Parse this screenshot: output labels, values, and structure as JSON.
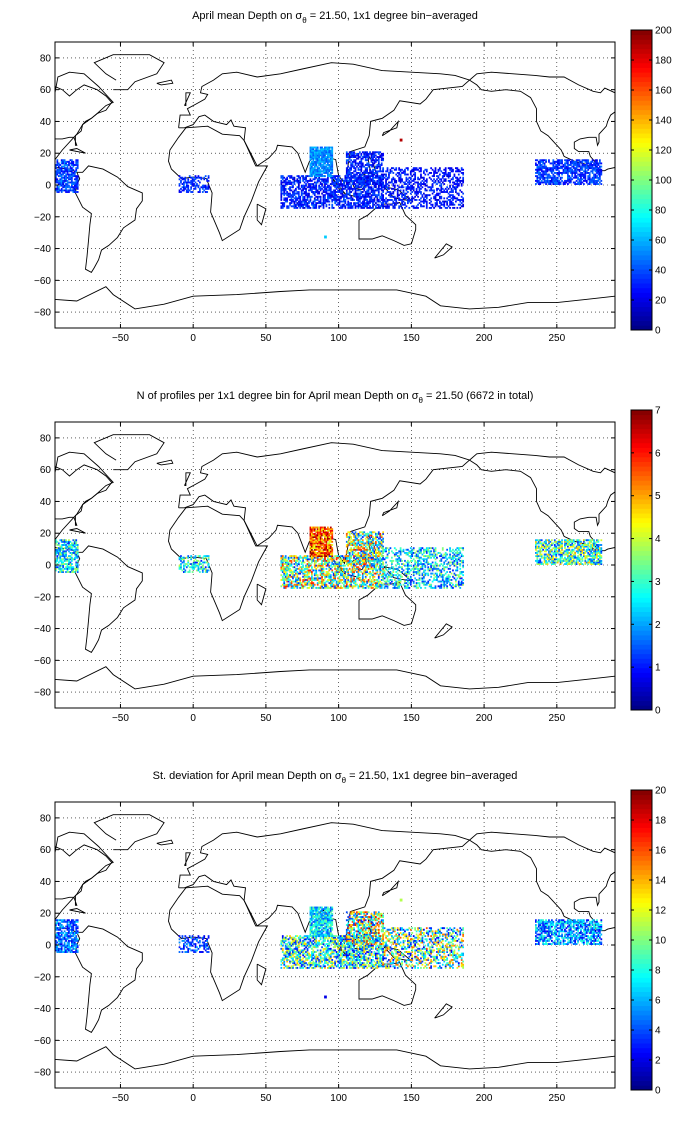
{
  "chart_data": [
    {
      "type": "heatmap",
      "title": "April mean Depth on σθ = 21.50, 1x1 degree bin−averaged",
      "title_parts": [
        "April mean Depth on σ",
        "θ",
        " = 21.50, 1x1 degree bin−averaged"
      ],
      "xlim": [
        -95,
        290
      ],
      "ylim": [
        -90,
        90
      ],
      "xticks": [
        -50,
        0,
        50,
        100,
        150,
        200,
        250
      ],
      "xtick_labels": [
        "−50",
        "0",
        "50",
        "100",
        "150",
        "200",
        "250"
      ],
      "yticks": [
        80,
        60,
        40,
        20,
        0,
        -20,
        -40,
        -60,
        -80
      ],
      "ytick_labels": [
        "80",
        "60",
        "40",
        "20",
        "0",
        "−20",
        "−40",
        "−60",
        "−80"
      ],
      "grid": true,
      "colormap": "jet",
      "clim": [
        0,
        200
      ],
      "colorbar_ticks": [
        0,
        20,
        40,
        60,
        80,
        100,
        120,
        140,
        160,
        180,
        200
      ],
      "colorbar_labels": [
        "0",
        "20",
        "40",
        "60",
        "80",
        "100",
        "120",
        "140",
        "160",
        "180",
        "200"
      ],
      "regions": [
        {
          "lon": [
            -95,
            -80
          ],
          "lat": [
            -5,
            15
          ],
          "value_range": [
            20,
            55
          ],
          "density": 0.7
        },
        {
          "lon": [
            -10,
            10
          ],
          "lat": [
            -5,
            5
          ],
          "value_range": [
            20,
            45
          ],
          "density": 0.5
        },
        {
          "lon": [
            60,
            130
          ],
          "lat": [
            -15,
            5
          ],
          "value_range": [
            15,
            45
          ],
          "density": 0.65
        },
        {
          "lon": [
            80,
            95
          ],
          "lat": [
            5,
            23
          ],
          "value_range": [
            40,
            65
          ],
          "density": 0.9
        },
        {
          "lon": [
            105,
            130
          ],
          "lat": [
            0,
            20
          ],
          "value_range": [
            15,
            45
          ],
          "density": 0.6
        },
        {
          "lon": [
            130,
            185
          ],
          "lat": [
            -15,
            10
          ],
          "value_range": [
            15,
            40
          ],
          "density": 0.45
        },
        {
          "lon": [
            235,
            280
          ],
          "lat": [
            0,
            15
          ],
          "value_range": [
            20,
            50
          ],
          "density": 0.7
        }
      ],
      "points": [
        {
          "lon": 142,
          "lat": 28,
          "value": 190
        },
        {
          "lon": 90,
          "lat": -33,
          "value": 65
        }
      ]
    },
    {
      "type": "heatmap",
      "title": "N of profiles per 1x1 degree bin for April mean Depth on σθ = 21.50 (6672 in total)",
      "title_parts": [
        "N of profiles per 1x1 degree bin for April mean Depth on σ",
        "θ",
        " = 21.50 (6672 in total)"
      ],
      "xlim": [
        -95,
        290
      ],
      "ylim": [
        -90,
        90
      ],
      "xticks": [
        -50,
        0,
        50,
        100,
        150,
        200,
        250
      ],
      "xtick_labels": [
        "−50",
        "0",
        "50",
        "100",
        "150",
        "200",
        "250"
      ],
      "yticks": [
        80,
        60,
        40,
        20,
        0,
        -20,
        -40,
        -60,
        -80
      ],
      "ytick_labels": [
        "80",
        "60",
        "40",
        "20",
        "0",
        "−20",
        "−40",
        "−60",
        "−80"
      ],
      "grid": true,
      "colormap": "jet",
      "clim": [
        0,
        7
      ],
      "colorbar_ticks": [
        0,
        1,
        2,
        3,
        4,
        5,
        6,
        7
      ],
      "colorbar_labels": [
        "0",
        "1",
        "2",
        "3",
        "4",
        "5",
        "6",
        "7"
      ],
      "regions": [
        {
          "lon": [
            -95,
            -80
          ],
          "lat": [
            -5,
            15
          ],
          "value_range": [
            1,
            4
          ],
          "density": 0.7
        },
        {
          "lon": [
            -10,
            10
          ],
          "lat": [
            -5,
            5
          ],
          "value_range": [
            1,
            4
          ],
          "density": 0.5
        },
        {
          "lon": [
            60,
            130
          ],
          "lat": [
            -15,
            5
          ],
          "value_range": [
            1,
            6
          ],
          "density": 0.65
        },
        {
          "lon": [
            80,
            95
          ],
          "lat": [
            5,
            23
          ],
          "value_range": [
            4,
            7
          ],
          "density": 0.9
        },
        {
          "lon": [
            105,
            130
          ],
          "lat": [
            0,
            20
          ],
          "value_range": [
            1,
            6
          ],
          "density": 0.6
        },
        {
          "lon": [
            130,
            185
          ],
          "lat": [
            -15,
            10
          ],
          "value_range": [
            1,
            4
          ],
          "density": 0.45
        },
        {
          "lon": [
            235,
            280
          ],
          "lat": [
            0,
            15
          ],
          "value_range": [
            1,
            5
          ],
          "density": 0.7
        }
      ],
      "points": []
    },
    {
      "type": "heatmap",
      "title": "St. deviation for April mean Depth on σθ = 21.50, 1x1 degree bin−averaged",
      "title_parts": [
        "St. deviation for April mean Depth on σ",
        "θ",
        " = 21.50, 1x1 degree bin−averaged"
      ],
      "xlim": [
        -95,
        290
      ],
      "ylim": [
        -90,
        90
      ],
      "xticks": [
        -50,
        0,
        50,
        100,
        150,
        200,
        250
      ],
      "xtick_labels": [
        "−50",
        "0",
        "50",
        "100",
        "150",
        "200",
        "250"
      ],
      "yticks": [
        80,
        60,
        40,
        20,
        0,
        -20,
        -40,
        -60,
        -80
      ],
      "ytick_labels": [
        "80",
        "60",
        "40",
        "20",
        "0",
        "−20",
        "−40",
        "−60",
        "−80"
      ],
      "grid": true,
      "colormap": "jet",
      "clim": [
        0,
        20
      ],
      "colorbar_ticks": [
        0,
        2,
        4,
        6,
        8,
        10,
        12,
        14,
        16,
        18,
        20
      ],
      "colorbar_labels": [
        "0",
        "2",
        "4",
        "6",
        "8",
        "10",
        "12",
        "14",
        "16",
        "18",
        "20"
      ],
      "regions": [
        {
          "lon": [
            -95,
            -80
          ],
          "lat": [
            -5,
            15
          ],
          "value_range": [
            2,
            7
          ],
          "density": 0.7
        },
        {
          "lon": [
            -10,
            10
          ],
          "lat": [
            -5,
            5
          ],
          "value_range": [
            2,
            6
          ],
          "density": 0.5
        },
        {
          "lon": [
            60,
            130
          ],
          "lat": [
            -15,
            5
          ],
          "value_range": [
            2,
            14
          ],
          "density": 0.65
        },
        {
          "lon": [
            80,
            95
          ],
          "lat": [
            5,
            23
          ],
          "value_range": [
            4,
            10
          ],
          "density": 0.9
        },
        {
          "lon": [
            105,
            130
          ],
          "lat": [
            0,
            20
          ],
          "value_range": [
            3,
            18
          ],
          "density": 0.6
        },
        {
          "lon": [
            130,
            185
          ],
          "lat": [
            -15,
            10
          ],
          "value_range": [
            2,
            16
          ],
          "density": 0.45
        },
        {
          "lon": [
            235,
            280
          ],
          "lat": [
            0,
            15
          ],
          "value_range": [
            2,
            9
          ],
          "density": 0.7
        }
      ],
      "points": [
        {
          "lon": 142,
          "lat": 28,
          "value": 11
        },
        {
          "lon": 90,
          "lat": -33,
          "value": 2
        }
      ]
    }
  ]
}
